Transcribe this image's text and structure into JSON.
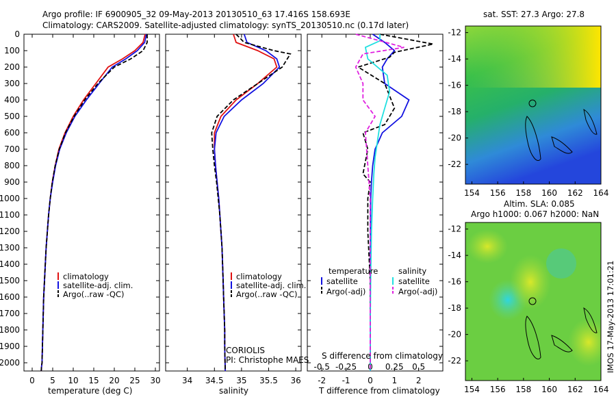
{
  "title": {
    "line1": "Argo profile: IF 6900905_32 09-May-2013 20130510_63 17.416S 158.693E",
    "line2": "Climatology: CARS2009. Satellite-adjusted climatology: synTS_20130510.nc (0.17d later)"
  },
  "sst_label": "sat. SST: 27.3 Argo: 27.8",
  "sla_label": {
    "line1": "Altim. SLA: 0.085",
    "line2": "Argo h1000: 0.067 h2000: NaN"
  },
  "credit": "IMOS 17-May-2013 17:01:21",
  "institution": {
    "name": "CORIOLIS",
    "pi": "PI: Christophe MAES"
  },
  "colors": {
    "climatology": "#e01010",
    "satellite": "#1010e0",
    "argo": "#000000",
    "sal_satellite": "#20e0e0",
    "sal_argo": "#e020e0"
  },
  "chart_data": [
    {
      "type": "line",
      "xlabel": "temperature (deg C)",
      "ylabel": "",
      "xlim": [
        -2,
        31
      ],
      "ylim": [
        2050,
        0
      ],
      "xticks": [
        "0",
        "5",
        "10",
        "15",
        "20",
        "25",
        "30"
      ],
      "yticks": [
        "0",
        "100",
        "200",
        "300",
        "400",
        "500",
        "600",
        "700",
        "800",
        "900",
        "1000",
        "1100",
        "1200",
        "1300",
        "1400",
        "1500",
        "1600",
        "1700",
        "1800",
        "1900",
        "2000"
      ],
      "legend": [
        "climatology",
        "satellite-adj. clim.",
        "Argo(..raw -QC)"
      ],
      "series": [
        {
          "name": "climatology",
          "x": [
            27.5,
            27.0,
            25.0,
            22.0,
            18.5,
            15.5,
            12.5,
            10.0,
            8.0,
            6.5,
            5.6,
            4.9,
            4.4,
            4.0,
            3.7,
            3.4,
            3.2,
            3.0,
            2.8,
            2.7,
            2.6,
            2.5,
            2.4,
            2.3,
            2.2
          ],
          "y": [
            0,
            50,
            100,
            150,
            200,
            300,
            400,
            500,
            600,
            700,
            800,
            900,
            1000,
            1100,
            1200,
            1300,
            1400,
            1500,
            1600,
            1700,
            1800,
            1900,
            2000,
            2020,
            2050
          ]
        },
        {
          "name": "satellite-adj. clim.",
          "x": [
            27.8,
            27.4,
            25.6,
            22.8,
            19.5,
            16.3,
            13.2,
            10.4,
            8.3,
            6.7,
            5.7,
            5.0,
            4.4,
            4.0,
            3.7,
            3.4,
            3.2,
            3.0,
            2.8,
            2.7,
            2.6,
            2.5,
            2.4,
            2.3,
            2.2
          ],
          "y": [
            0,
            50,
            100,
            150,
            200,
            300,
            400,
            500,
            600,
            700,
            800,
            900,
            1000,
            1100,
            1200,
            1300,
            1400,
            1500,
            1600,
            1700,
            1800,
            1900,
            2000,
            2020,
            2050
          ]
        },
        {
          "name": "Argo(..raw -QC)",
          "x": [
            28.0,
            28.0,
            27.0,
            24.0,
            20.0,
            16.0,
            12.8,
            10.2,
            8.1,
            6.6,
            5.6,
            4.9,
            4.4,
            4.0,
            3.7,
            3.4,
            3.2,
            3.0,
            2.8,
            2.7,
            2.6,
            2.5,
            2.4,
            2.3,
            2.2
          ],
          "y": [
            0,
            50,
            100,
            150,
            200,
            300,
            400,
            500,
            600,
            700,
            800,
            900,
            1000,
            1100,
            1200,
            1300,
            1400,
            1500,
            1600,
            1700,
            1800,
            1900,
            2000,
            2020,
            2050
          ]
        }
      ]
    },
    {
      "type": "line",
      "xlabel": "salinity",
      "ylabel": "",
      "xlim": [
        33.6,
        36.1
      ],
      "ylim": [
        2050,
        0
      ],
      "xticks": [
        "34",
        "34.5",
        "35",
        "35.5",
        "36"
      ],
      "legend": [
        "climatology",
        "satellite-adj. clim.",
        "Argo(..raw -QC)"
      ],
      "series": [
        {
          "name": "climatology",
          "x": [
            34.85,
            34.9,
            35.3,
            35.6,
            35.65,
            35.3,
            34.9,
            34.62,
            34.5,
            34.5,
            34.52,
            34.55,
            34.58,
            34.6,
            34.62,
            34.64,
            34.65,
            34.66,
            34.67,
            34.68,
            34.69,
            34.69,
            34.7
          ],
          "y": [
            0,
            50,
            100,
            150,
            200,
            300,
            400,
            500,
            600,
            700,
            800,
            900,
            1000,
            1100,
            1200,
            1300,
            1400,
            1500,
            1600,
            1700,
            1800,
            1900,
            2050
          ]
        },
        {
          "name": "satellite-adj. clim.",
          "x": [
            35.05,
            35.1,
            35.45,
            35.65,
            35.7,
            35.4,
            35.0,
            34.68,
            34.53,
            34.5,
            34.52,
            34.55,
            34.58,
            34.6,
            34.62,
            34.64,
            34.65,
            34.66,
            34.67,
            34.68,
            34.69,
            34.69,
            34.7
          ],
          "y": [
            0,
            50,
            100,
            150,
            200,
            300,
            400,
            500,
            600,
            700,
            800,
            900,
            1000,
            1100,
            1200,
            1300,
            1400,
            1500,
            1600,
            1700,
            1800,
            1900,
            2050
          ]
        },
        {
          "name": "Argo(..raw -QC)",
          "x": [
            34.9,
            35.05,
            35.6,
            35.9,
            35.75,
            35.3,
            34.85,
            34.55,
            34.45,
            34.47,
            34.5,
            34.54,
            34.57,
            34.6,
            34.62,
            34.64,
            34.65,
            34.66,
            34.67,
            34.68,
            34.69,
            34.69,
            34.7
          ],
          "y": [
            0,
            50,
            100,
            120,
            200,
            300,
            400,
            500,
            600,
            700,
            800,
            900,
            1000,
            1100,
            1200,
            1300,
            1400,
            1500,
            1600,
            1700,
            1800,
            1900,
            2050
          ]
        }
      ]
    },
    {
      "type": "line",
      "xlabel": "T difference from climatology",
      "xlabel_top": "S difference from climatology",
      "xlim": [
        -2.6,
        3.0
      ],
      "ylim": [
        2050,
        0
      ],
      "xticks": [
        "-2",
        "-1",
        "0",
        "1",
        "2"
      ],
      "xticks_top": [
        "-0.5",
        "-0.25",
        "0",
        "0.25",
        "0.5"
      ],
      "legend_titles": [
        "temperature",
        "salinity"
      ],
      "legend": [
        "satellite",
        "Argo(-adj)",
        "satellite",
        "Argo(-adj)"
      ],
      "series": [
        {
          "name": "temperature satellite",
          "x": [
            0.1,
            0.6,
            1.0,
            0.7,
            0.5,
            0.6,
            1.6,
            1.3,
            0.5,
            0.2,
            0.1,
            0.05,
            0.02,
            0.01,
            0.0,
            0.0,
            0.0
          ],
          "y": [
            0,
            50,
            100,
            150,
            200,
            300,
            400,
            500,
            600,
            700,
            800,
            900,
            1000,
            1200,
            1500,
            1800,
            2050
          ]
        },
        {
          "name": "temperature Argo(-adj)",
          "x": [
            0.4,
            2.6,
            1.0,
            0.8,
            -0.5,
            0.6,
            1.0,
            0.6,
            -0.3,
            -0.1,
            -0.3,
            0.0,
            -0.1,
            -0.1,
            0.0,
            0.0,
            0.0
          ],
          "y": [
            0,
            60,
            110,
            140,
            200,
            300,
            450,
            550,
            600,
            700,
            850,
            900,
            1000,
            1200,
            1500,
            1800,
            2050
          ]
        },
        {
          "name": "salinity satellite",
          "x": [
            0.4,
            0.4,
            -0.2,
            -0.1,
            0.7,
            0.8,
            0.6,
            0.4,
            0.3,
            0.2,
            0.15,
            0.1,
            0.05,
            0.02,
            0.0,
            0.0
          ],
          "y": [
            0,
            40,
            80,
            150,
            250,
            350,
            450,
            550,
            650,
            750,
            850,
            1000,
            1200,
            1500,
            1800,
            2050
          ]
        },
        {
          "name": "salinity Argo(-adj)",
          "x": [
            -0.6,
            1.4,
            -0.3,
            -0.6,
            -0.3,
            -0.3,
            0.2,
            -0.2,
            -0.1,
            0.0,
            0.0,
            0.0,
            0.0
          ],
          "y": [
            0,
            80,
            120,
            200,
            300,
            400,
            500,
            600,
            800,
            1000,
            1200,
            1500,
            2050
          ]
        }
      ]
    },
    {
      "type": "heatmap",
      "title": "sat. SST: 27.3 Argo: 27.8",
      "xlim": [
        153.5,
        164
      ],
      "ylim": [
        -23.5,
        -11.5
      ],
      "xticks": [
        "154",
        "156",
        "158",
        "160",
        "162",
        "164"
      ],
      "yticks": [
        "-12",
        "-14",
        "-16",
        "-18",
        "-20",
        "-22"
      ],
      "marker": {
        "lon": 158.693,
        "lat": -17.416
      }
    },
    {
      "type": "heatmap",
      "title": "Altim. SLA: 0.085",
      "xlim": [
        153.5,
        164
      ],
      "ylim": [
        -23.5,
        -11.5
      ],
      "xticks": [
        "154",
        "156",
        "158",
        "160",
        "162",
        "164"
      ],
      "yticks": [
        "-12",
        "-14",
        "-16",
        "-18",
        "-20",
        "-22"
      ],
      "marker": {
        "lon": 158.693,
        "lat": -17.416
      }
    }
  ]
}
